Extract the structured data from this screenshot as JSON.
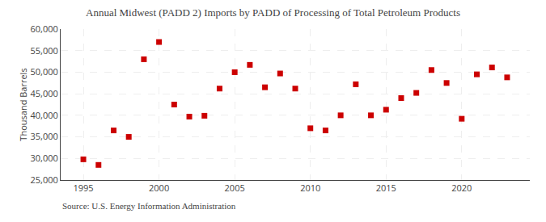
{
  "chart_data": {
    "type": "scatter",
    "title": "Annual Midwest (PADD 2) Imports by PADD of Processing of Total Petroleum Products",
    "y_label": "Thousand Barrels",
    "annotations": [
      "Source: U.S. Energy Information Administration"
    ],
    "x": [
      1995,
      1996,
      1997,
      1998,
      1999,
      2000,
      2001,
      2002,
      2003,
      2004,
      2005,
      2006,
      2007,
      2008,
      2009,
      2010,
      2011,
      2012,
      2013,
      2014,
      2015,
      2016,
      2017,
      2018,
      2019,
      2020,
      2021,
      2022,
      2023
    ],
    "values": [
      29800,
      28500,
      36500,
      35000,
      53000,
      57000,
      42500,
      39700,
      39900,
      46200,
      50000,
      51700,
      46500,
      49700,
      46200,
      37000,
      36500,
      40000,
      47200,
      40000,
      41300,
      44000,
      45200,
      50500,
      47500,
      39200,
      49500,
      51100,
      48800
    ],
    "color": "#cc0000",
    "marker": "square",
    "xlim": [
      1993.5,
      2024.5
    ],
    "xticks": [
      1995,
      2000,
      2005,
      2010,
      2015,
      2020
    ],
    "ylim": [
      25000,
      60000
    ],
    "yticks": [
      {
        "value": 25000,
        "label": "25,000"
      },
      {
        "value": 30000,
        "label": "30,000"
      },
      {
        "value": 35000,
        "label": "35,000"
      },
      {
        "value": 40000,
        "label": "40,000"
      },
      {
        "value": 45000,
        "label": "45,000"
      },
      {
        "value": 50000,
        "label": "50,000"
      },
      {
        "value": 55000,
        "label": "55,000"
      },
      {
        "value": 60000,
        "label": "60,000"
      }
    ],
    "grid": true
  }
}
